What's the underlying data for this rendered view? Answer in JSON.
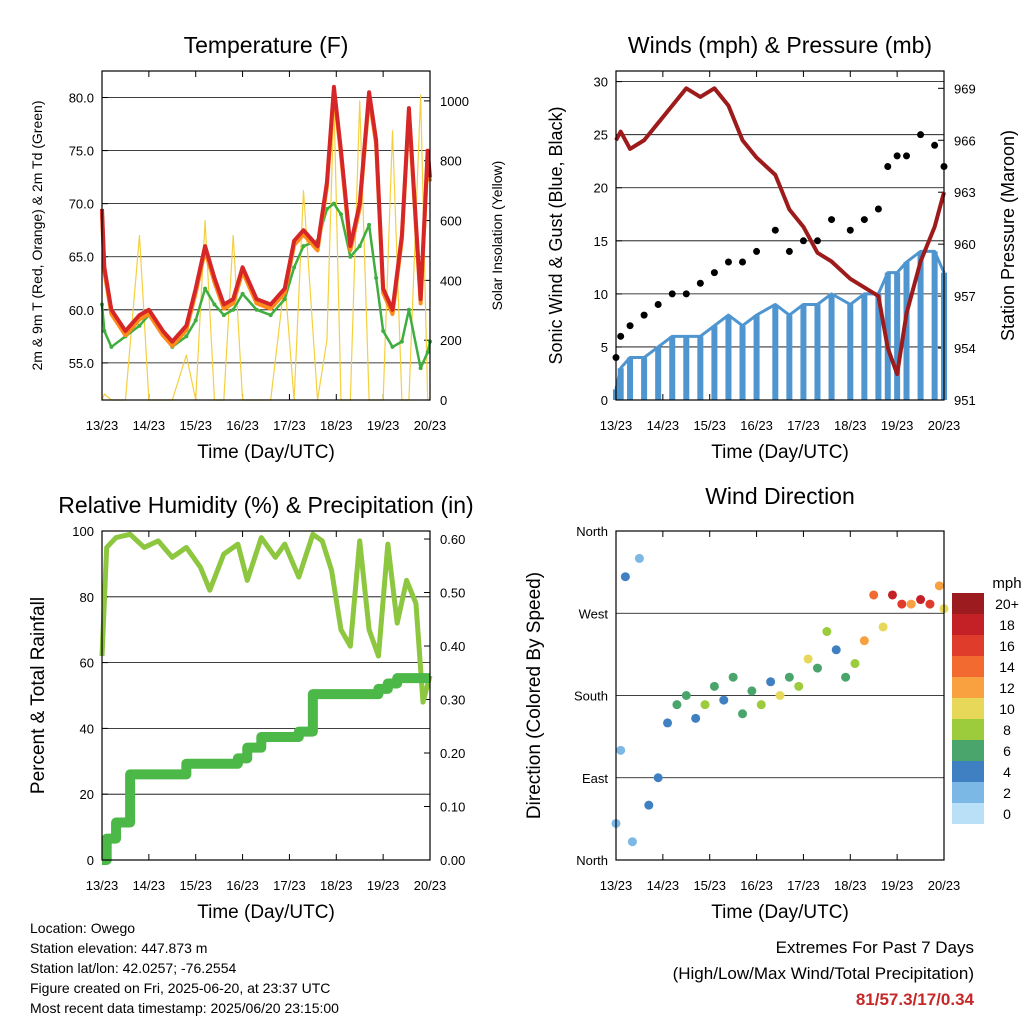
{
  "xtick_labels": [
    "13/23",
    "14/23",
    "15/23",
    "16/23",
    "17/23",
    "18/23",
    "19/23",
    "20/23"
  ],
  "time_label": "Time (Day/UTC)",
  "colors": {
    "temp_2m": "#d62728",
    "temp_9m": "#ff8c1a",
    "dewpoint": "#3fae3f",
    "insolation": "#f4d03f",
    "wind": "#4f95d0",
    "gust": "#000000",
    "pressure": "#9e1b1b",
    "rh": "#8dc63f",
    "precip": "#4cb848"
  },
  "chart_data": [
    {
      "type": "line",
      "title": "Temperature (F)",
      "xlabel": "Time (Day/UTC)",
      "ylabel": "2m & 9m T (Red, Orange) & 2m Td (Green)",
      "ylabel_right": "Solar Insolation (Yellow)",
      "ylim": [
        51.5,
        82.5
      ],
      "yticks": [
        "55.0",
        "60.0",
        "65.0",
        "70.0",
        "75.0",
        "80.0"
      ],
      "ylim_right": [
        0,
        1100
      ],
      "yticks_right": [
        "0",
        "200",
        "400",
        "600",
        "800",
        "1000"
      ],
      "x": [
        0,
        0.05,
        0.2,
        0.5,
        0.8,
        1.0,
        1.3,
        1.5,
        1.8,
        2.0,
        2.2,
        2.4,
        2.6,
        2.8,
        3.0,
        3.3,
        3.6,
        3.9,
        4.1,
        4.3,
        4.6,
        4.8,
        4.95,
        5.1,
        5.3,
        5.5,
        5.7,
        5.85,
        6.0,
        6.2,
        6.4,
        6.55,
        6.8,
        6.95,
        7.0
      ],
      "series": [
        {
          "values": [
            69.5,
            64,
            60,
            58,
            59.5,
            60,
            58,
            57,
            58.5,
            62,
            66,
            63,
            60.5,
            61,
            64,
            61,
            60.5,
            62,
            66.5,
            67.5,
            66,
            72,
            81,
            75,
            66,
            70,
            80.5,
            76,
            62,
            60,
            67,
            79,
            61,
            75,
            72.5
          ]
        },
        {
          "values": [
            60.5,
            58,
            56.5,
            57.5,
            58.5,
            59.5,
            58,
            56.5,
            57.5,
            59,
            62,
            60.5,
            59.5,
            60,
            61.5,
            60,
            59.5,
            61,
            64,
            66,
            66.5,
            69.5,
            70,
            69,
            65,
            66,
            68,
            63,
            58,
            56.5,
            57,
            60,
            54.5,
            56,
            57
          ]
        },
        {
          "values": [
            0,
            20,
            0,
            0,
            550,
            0,
            0,
            0,
            150,
            0,
            600,
            0,
            0,
            550,
            0,
            0,
            0,
            400,
            0,
            700,
            0,
            200,
            1000,
            0,
            0,
            1000,
            0,
            0,
            0,
            900,
            0,
            0,
            1020,
            0,
            0
          ]
        }
      ]
    },
    {
      "type": "line",
      "title": "Winds (mph) & Pressure (mb)",
      "xlabel": "Time (Day/UTC)",
      "ylabel": "Sonic Wind & Gust (Blue, Black)",
      "ylabel_right": "Station Pressure (Maroon)",
      "ylim": [
        0,
        31
      ],
      "yticks": [
        "0",
        "5",
        "10",
        "15",
        "20",
        "25",
        "30"
      ],
      "ylim_right": [
        951,
        970
      ],
      "yticks_right": [
        "951",
        "954",
        "957",
        "960",
        "963",
        "966",
        "969"
      ],
      "x": [
        0,
        0.1,
        0.3,
        0.6,
        0.9,
        1.2,
        1.5,
        1.8,
        2.1,
        2.4,
        2.7,
        3.0,
        3.4,
        3.7,
        4.0,
        4.3,
        4.6,
        5.0,
        5.3,
        5.6,
        5.8,
        6.0,
        6.2,
        6.5,
        6.8,
        7.0
      ],
      "series": [
        {
          "values": [
            1,
            3,
            4,
            4,
            5,
            6,
            6,
            6,
            7,
            8,
            7,
            8,
            9,
            8,
            9,
            9,
            10,
            9,
            10,
            10,
            12,
            12,
            13,
            14,
            14,
            12
          ]
        },
        {
          "values": [
            4,
            6,
            7,
            8,
            9,
            10,
            10,
            11,
            12,
            13,
            13,
            14,
            16,
            14,
            15,
            15,
            17,
            16,
            17,
            18,
            22,
            23,
            23,
            25,
            24,
            22
          ]
        },
        {
          "values": [
            966,
            966.5,
            965.5,
            966,
            967,
            968,
            969,
            968.5,
            969,
            968,
            966,
            965,
            964,
            962,
            961,
            959.5,
            959,
            958,
            957.5,
            957,
            954,
            952.5,
            956,
            959,
            961,
            963
          ]
        }
      ]
    },
    {
      "type": "line",
      "title": "Relative Humidity (%) & Precipitation (in)",
      "xlabel": "Time (Day/UTC)",
      "ylabel": "Percent & Total Rainfall",
      "ylim": [
        0,
        100
      ],
      "yticks": [
        "0",
        "20",
        "40",
        "60",
        "80",
        "100"
      ],
      "ylim_right": [
        0,
        0.615
      ],
      "yticks_right": [
        "0.00",
        "0.10",
        "0.20",
        "0.30",
        "0.40",
        "0.50",
        "0.60"
      ],
      "x": [
        0,
        0.1,
        0.3,
        0.6,
        0.9,
        1.2,
        1.5,
        1.8,
        2.1,
        2.3,
        2.6,
        2.9,
        3.1,
        3.4,
        3.7,
        3.9,
        4.2,
        4.5,
        4.7,
        4.9,
        5.1,
        5.3,
        5.5,
        5.7,
        5.9,
        6.1,
        6.3,
        6.5,
        6.7,
        6.85,
        7.0
      ],
      "series": [
        {
          "values": [
            62,
            95,
            98,
            99,
            95,
            97,
            92,
            95,
            89,
            82,
            93,
            96,
            85,
            98,
            92,
            96,
            86,
            99,
            97,
            88,
            70,
            65,
            97,
            70,
            62,
            96,
            72,
            85,
            78,
            48,
            56
          ]
        },
        {
          "values": [
            0,
            0.04,
            0.07,
            0.16,
            0.16,
            0.16,
            0.16,
            0.18,
            0.18,
            0.18,
            0.18,
            0.19,
            0.21,
            0.23,
            0.23,
            0.23,
            0.24,
            0.31,
            0.31,
            0.31,
            0.31,
            0.31,
            0.31,
            0.31,
            0.32,
            0.33,
            0.34,
            0.34,
            0.34,
            0.34,
            0.34
          ]
        }
      ]
    },
    {
      "type": "scatter",
      "title": "Wind Direction",
      "xlabel": "Time (Day/UTC)",
      "ylabel": "Direction (Colored By Speed)",
      "ylim": [
        0,
        360
      ],
      "ytick_values": [
        0,
        90,
        180,
        270,
        360
      ],
      "yticks": [
        "North",
        "East",
        "South",
        "West",
        "North"
      ],
      "colorbar_title": "mph",
      "colorbar_labels": [
        "20+",
        "18",
        "16",
        "14",
        "12",
        "10",
        "8",
        "6",
        "4",
        "2",
        "0"
      ],
      "colorbar_colors": [
        "#9b1b1e",
        "#c42127",
        "#e03c2b",
        "#f26a2f",
        "#f9a040",
        "#e8d85a",
        "#9ccb3b",
        "#4aa56c",
        "#3e80c1",
        "#7cb8e6",
        "#b9e0f6"
      ],
      "x": [
        0,
        0.1,
        0.2,
        0.35,
        0.5,
        0.7,
        0.9,
        1.1,
        1.3,
        1.5,
        1.7,
        1.9,
        2.1,
        2.3,
        2.5,
        2.7,
        2.9,
        3.1,
        3.3,
        3.5,
        3.7,
        3.9,
        4.1,
        4.3,
        4.5,
        4.7,
        4.9,
        5.1,
        5.3,
        5.5,
        5.7,
        5.9,
        6.1,
        6.3,
        6.5,
        6.7,
        6.9,
        7.0
      ],
      "values": [
        40,
        120,
        310,
        20,
        330,
        60,
        90,
        150,
        170,
        180,
        155,
        170,
        190,
        175,
        200,
        160,
        185,
        170,
        195,
        180,
        200,
        190,
        220,
        210,
        250,
        230,
        200,
        215,
        240,
        290,
        255,
        290,
        280,
        280,
        285,
        280,
        300,
        275
      ],
      "speeds": [
        1,
        2,
        3,
        1,
        2,
        3,
        4,
        4,
        5,
        6,
        4,
        8,
        5,
        4,
        5,
        6,
        5,
        8,
        4,
        9,
        5,
        7,
        10,
        5,
        7,
        4,
        5,
        8,
        12,
        14,
        10,
        18,
        16,
        12,
        18,
        15,
        12,
        10
      ]
    }
  ],
  "info": {
    "location": "Location: Owego",
    "elevation": "Station elevation: 447.873 m",
    "latlon": "Station lat/lon: 42.0257; -76.2554",
    "created": "Figure created on Fri, 2025-06-20, at 23:37 UTC",
    "recent": "Most recent data timestamp: 2025/06/20 23:15:00"
  },
  "extremes": {
    "title": "Extremes For Past 7 Days",
    "subtitle": "(High/Low/Max Wind/Total Precipitation)",
    "values": "81/57.3/17/0.34"
  }
}
